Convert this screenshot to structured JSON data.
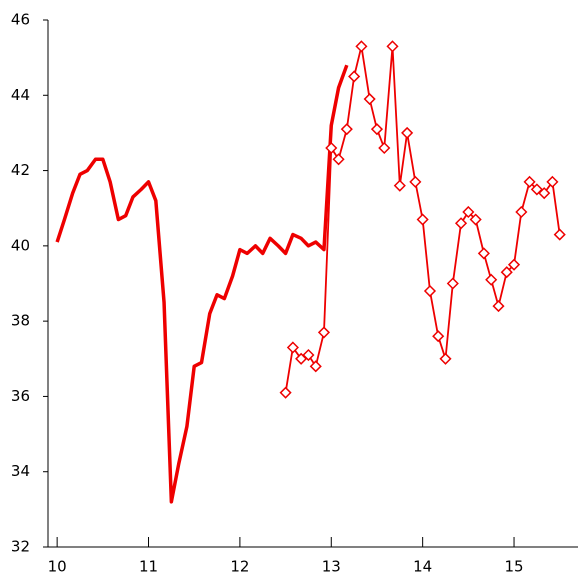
{
  "chart_data": {
    "type": "line",
    "xlim": [
      9.9,
      15.7
    ],
    "xticks": [
      10,
      11,
      12,
      13,
      14,
      15
    ],
    "ylim": [
      32,
      46
    ],
    "yticks": [
      32,
      34,
      36,
      38,
      40,
      42,
      44,
      46
    ],
    "series": [
      {
        "color": "#ee0000",
        "marker": "none",
        "x": [
          10.0,
          10.08,
          10.17,
          10.25,
          10.33,
          10.42,
          10.5,
          10.58,
          10.67,
          10.75,
          10.83,
          10.92,
          11.0,
          11.08,
          11.17,
          11.25,
          11.33,
          11.42,
          11.5,
          11.58,
          11.67,
          11.75,
          11.83,
          11.92,
          12.0,
          12.08,
          12.17,
          12.25,
          12.33,
          12.42,
          12.5,
          12.58,
          12.67,
          12.75,
          12.83,
          12.92,
          13.0,
          13.08,
          13.17
        ],
        "values": [
          40.1,
          40.7,
          41.4,
          41.9,
          42.0,
          42.3,
          42.3,
          41.7,
          40.7,
          40.8,
          41.3,
          41.5,
          41.7,
          41.2,
          38.5,
          33.2,
          34.2,
          35.2,
          36.8,
          36.9,
          38.2,
          38.7,
          38.6,
          39.2,
          39.9,
          39.8,
          40.0,
          39.8,
          40.2,
          40.0,
          39.8,
          40.3,
          40.2,
          40.0,
          40.1,
          39.9,
          43.2,
          44.2,
          44.8
        ]
      },
      {
        "color": "#ee0000",
        "marker": "diamond",
        "x": [
          12.5,
          12.58,
          12.67,
          12.75,
          12.83,
          12.92,
          13.0,
          13.08,
          13.17,
          13.25,
          13.33,
          13.42,
          13.5,
          13.58,
          13.67,
          13.75,
          13.83,
          13.92,
          14.0,
          14.08,
          14.17,
          14.25,
          14.33,
          14.42,
          14.5,
          14.58,
          14.67,
          14.75,
          14.83,
          14.92,
          15.0,
          15.08,
          15.17,
          15.25,
          15.33,
          15.42,
          15.5
        ],
        "values": [
          36.1,
          37.3,
          37.0,
          37.1,
          36.8,
          37.7,
          42.6,
          42.3,
          43.1,
          44.5,
          45.3,
          43.9,
          43.1,
          42.6,
          45.3,
          41.6,
          43.0,
          41.7,
          40.7,
          38.8,
          37.6,
          37.0,
          39.0,
          40.6,
          40.9,
          40.7,
          39.8,
          39.1,
          38.4,
          39.3,
          39.5,
          40.9,
          41.7,
          41.5,
          41.4,
          41.7,
          40.3
        ]
      }
    ]
  }
}
